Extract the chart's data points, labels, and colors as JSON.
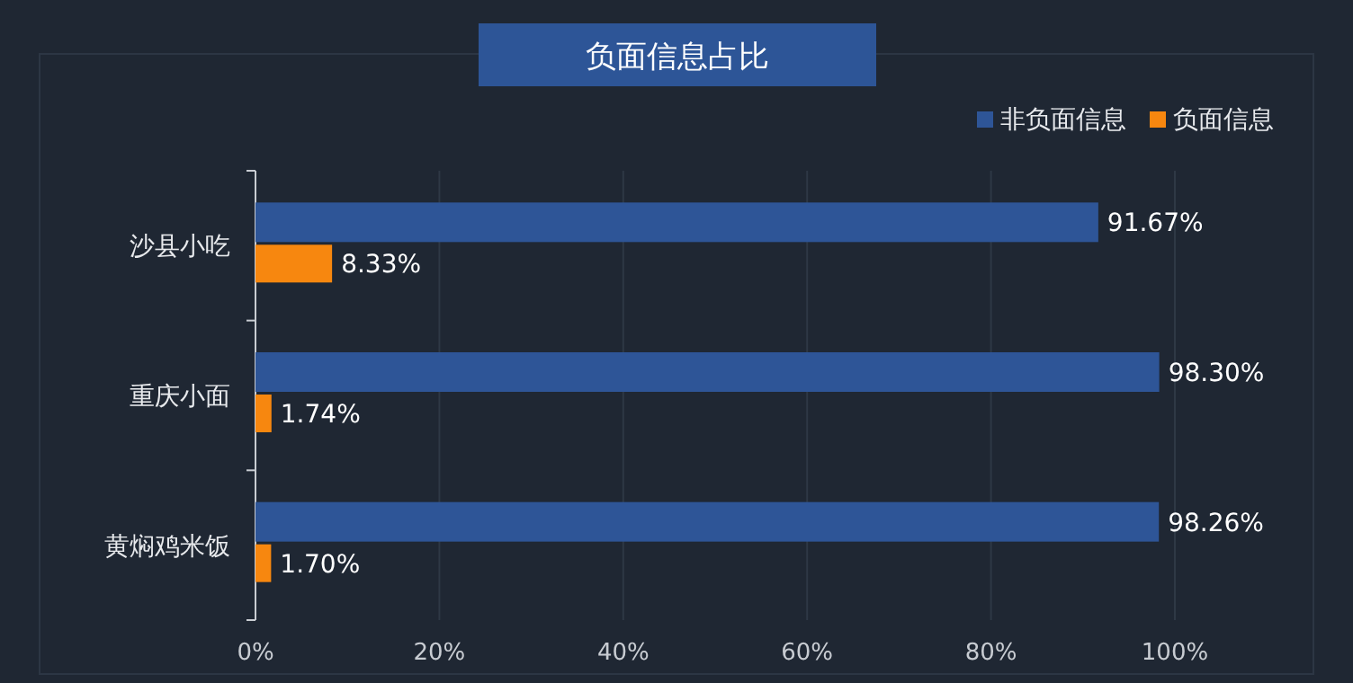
{
  "chart_data": {
    "type": "bar",
    "orientation": "horizontal",
    "title": "负面信息占比",
    "categories": [
      "沙县小吃",
      "重庆小面",
      "黄焖鸡米饭"
    ],
    "series": [
      {
        "name": "非负面信息",
        "color": "#2e5597",
        "values": [
          91.67,
          98.3,
          98.26
        ],
        "value_labels": [
          "91.67%",
          "98.30%",
          "98.26%"
        ]
      },
      {
        "name": "负面信息",
        "color": "#f7870f",
        "values": [
          8.33,
          1.74,
          1.7
        ],
        "value_labels": [
          "8.33%",
          "1.74%",
          "1.70%"
        ]
      }
    ],
    "xlim": [
      0,
      100
    ],
    "xticks": [
      {
        "value": 0,
        "label": "0%"
      },
      {
        "value": 20,
        "label": "20%"
      },
      {
        "value": 40,
        "label": "40%"
      },
      {
        "value": 60,
        "label": "60%"
      },
      {
        "value": 80,
        "label": "80%"
      },
      {
        "value": 100,
        "label": "100%"
      }
    ],
    "grid": "x",
    "legend": "top right"
  }
}
